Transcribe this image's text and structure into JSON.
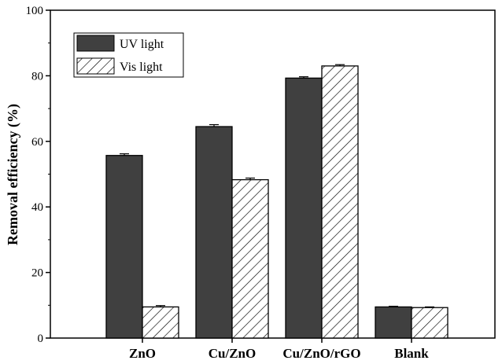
{
  "chart_data": {
    "type": "bar",
    "title": "",
    "xlabel": "",
    "ylabel": "Removal efficiency (%)",
    "ylim": [
      0,
      100
    ],
    "yticks": [
      0,
      20,
      40,
      60,
      80,
      100
    ],
    "categories": [
      "ZnO",
      "Cu/ZnO",
      "Cu/ZnO/rGO",
      "Blank"
    ],
    "series": [
      {
        "name": "UV light",
        "values": [
          55.7,
          64.5,
          79.3,
          9.5
        ],
        "errors": [
          0.5,
          0.6,
          0.4,
          0.2
        ],
        "color": "#404040",
        "fill": "solid"
      },
      {
        "name": "Vis light",
        "values": [
          9.5,
          48.3,
          83.0,
          9.3
        ],
        "errors": [
          0.4,
          0.5,
          0.4,
          0.2
        ],
        "color": "#ffffff",
        "fill": "hatch"
      }
    ],
    "grid": false,
    "legend": "top-left"
  }
}
